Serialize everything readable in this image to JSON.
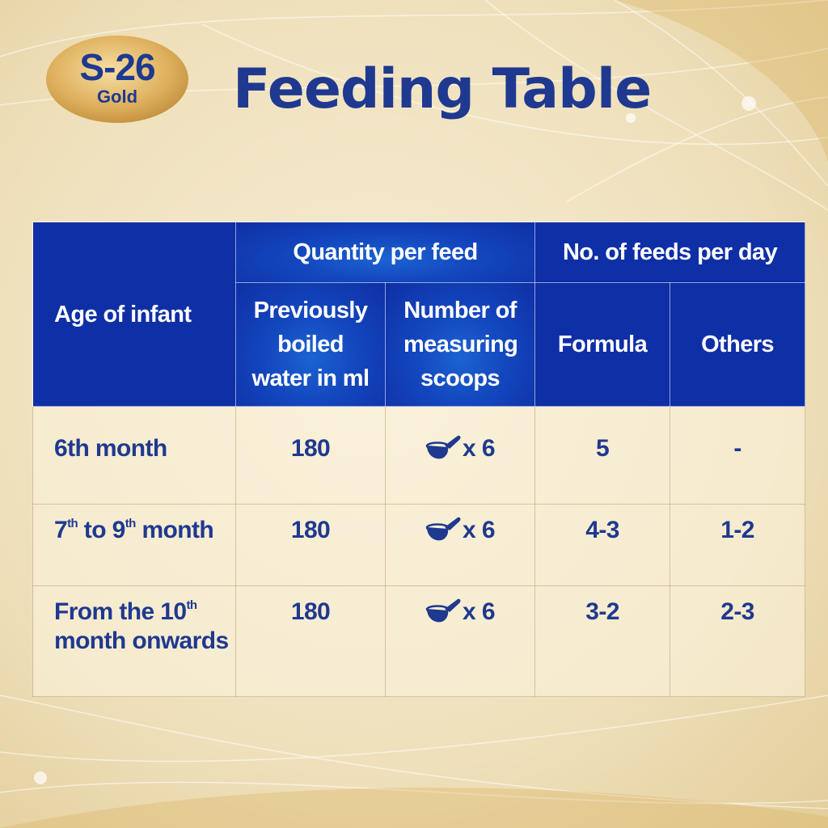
{
  "logo": {
    "brand": "S-26",
    "sub": "Gold"
  },
  "title": "Feeding Table",
  "colors": {
    "navy": "#1f3990",
    "header_blue": "#0f2fa6",
    "gold_bg": "#efe1bd"
  },
  "table": {
    "headers": {
      "age": "Age of infant",
      "quantity_group": "Quantity per feed",
      "feeds_group": "No. of feeds per day",
      "water": "Previously boiled water in ml",
      "scoops": "Number of measuring scoops",
      "formula": "Formula",
      "others": "Others"
    },
    "rows": [
      {
        "age_prefix": "6th month",
        "water": "180",
        "scoop_icon": "measuring-scoop-icon",
        "scoops": "x 6",
        "formula": "5",
        "others": "-"
      },
      {
        "age_a": "7",
        "sup_a": "th",
        "age_b": " to 9",
        "sup_b": "th",
        "age_c": " month",
        "water": "180",
        "scoop_icon": "measuring-scoop-icon",
        "scoops": "x 6",
        "formula": "4-3",
        "others": "1-2"
      },
      {
        "age_a": "From the 10",
        "sup_a": "th",
        "age_c": "month onwards",
        "water": "180",
        "scoop_icon": "measuring-scoop-icon",
        "scoops": "x 6",
        "formula": "3-2",
        "others": "2-3"
      }
    ]
  }
}
